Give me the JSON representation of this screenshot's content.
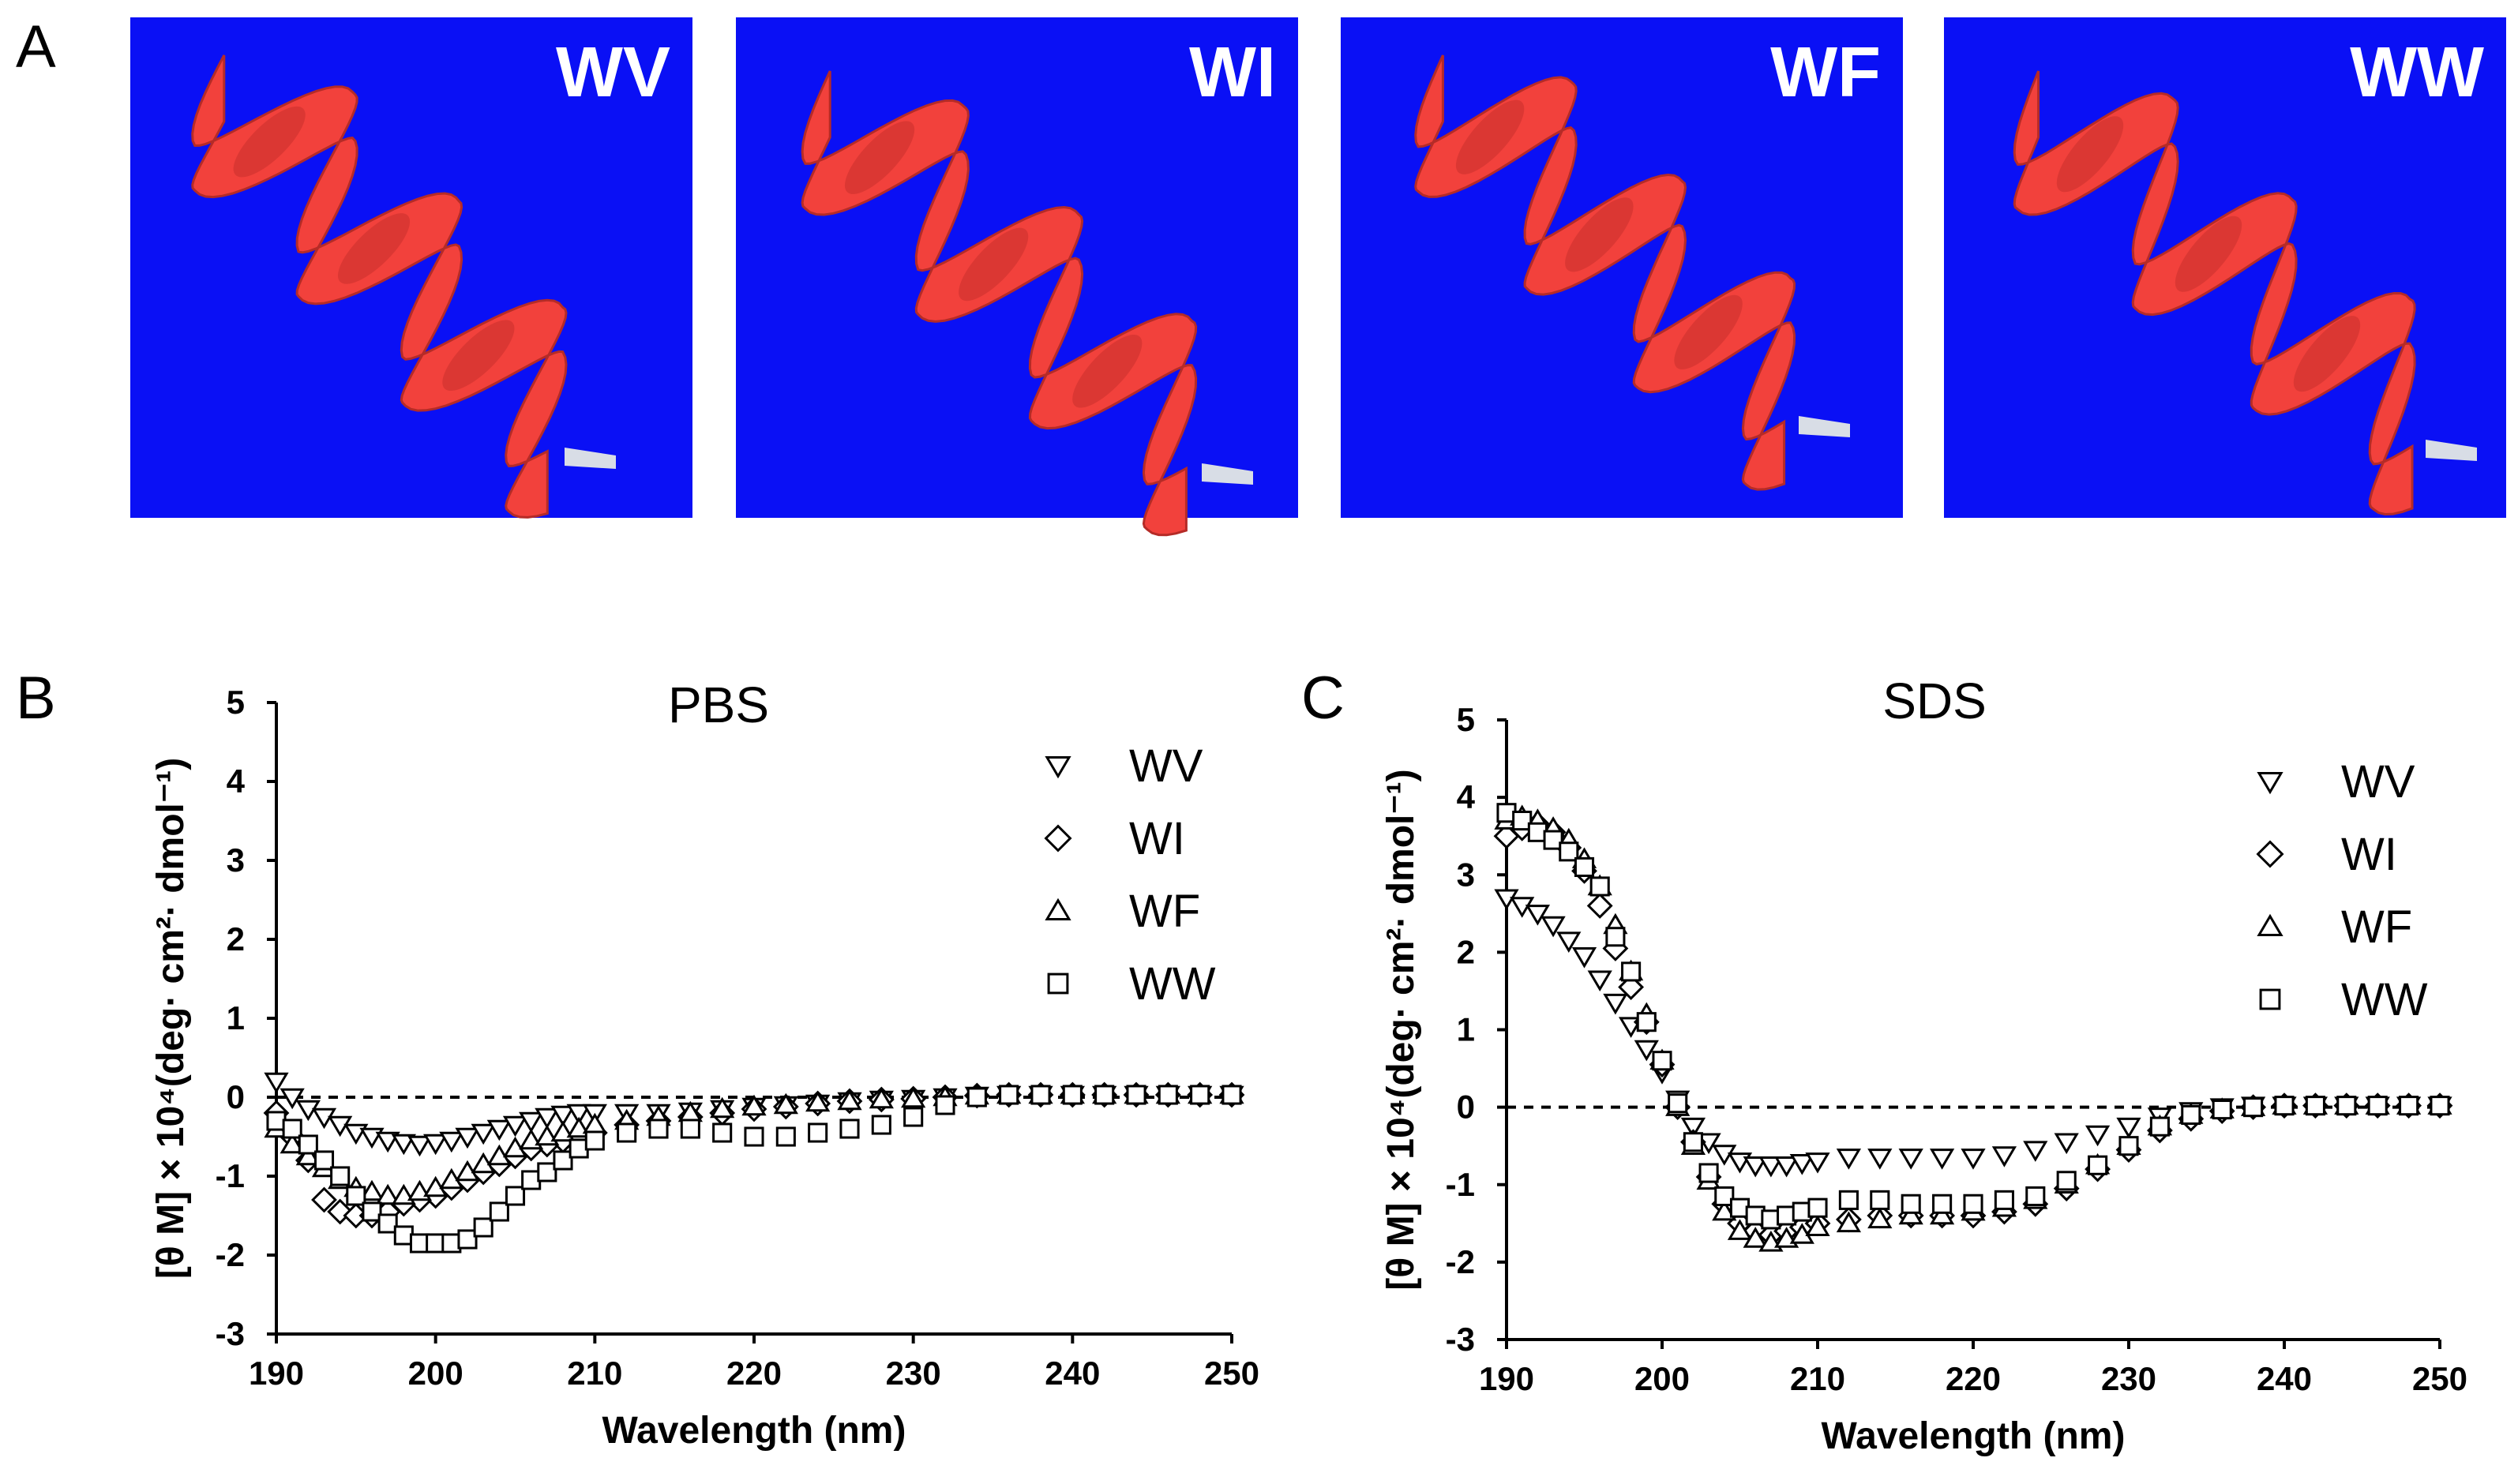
{
  "panel_labels": {
    "a": "A",
    "b": "B",
    "c": "C"
  },
  "structure_panels": [
    {
      "label": "WV",
      "background": "#0a10f5",
      "helix_color": "#f2413c"
    },
    {
      "label": "WI",
      "background": "#0a10f5",
      "helix_color": "#f2413c"
    },
    {
      "label": "WF",
      "background": "#0a10f5",
      "helix_color": "#f2413c"
    },
    {
      "label": "WW",
      "background": "#0a10f5",
      "helix_color": "#f2413c"
    }
  ],
  "chart_data": [
    {
      "type": "scatter",
      "title": "PBS",
      "xlabel": "Wavelength (nm)",
      "ylabel": "[θ M] × 10⁴(deg· cm²· dmol⁻¹)",
      "xlim": [
        190,
        250
      ],
      "ylim": [
        -3,
        5
      ],
      "xticks": [
        "190",
        "200",
        "210",
        "220",
        "230",
        "240",
        "250"
      ],
      "yticks": [
        "5",
        "4",
        "3",
        "2",
        "1",
        "0",
        "-1",
        "-2",
        "-3"
      ],
      "zero_line": "dashed",
      "legend_position": "top-right",
      "series": [
        {
          "name": "WV",
          "marker": "triangle-down",
          "x": [
            190,
            191,
            192,
            193,
            194,
            195,
            196,
            197,
            198,
            199,
            200,
            201,
            202,
            203,
            204,
            205,
            206,
            207,
            208,
            209,
            210,
            212,
            214,
            216,
            218,
            220,
            222,
            224,
            226,
            228,
            230,
            232,
            234,
            236,
            238,
            240,
            242,
            244,
            246,
            248,
            250
          ],
          "y": [
            0.2,
            0.0,
            -0.15,
            -0.25,
            -0.35,
            -0.45,
            -0.5,
            -0.55,
            -0.58,
            -0.6,
            -0.58,
            -0.55,
            -0.5,
            -0.45,
            -0.4,
            -0.35,
            -0.3,
            -0.25,
            -0.22,
            -0.2,
            -0.2,
            -0.2,
            -0.2,
            -0.18,
            -0.15,
            -0.12,
            -0.1,
            -0.08,
            -0.05,
            -0.03,
            -0.02,
            0.0,
            0.02,
            0.03,
            0.03,
            0.03,
            0.03,
            0.03,
            0.03,
            0.03,
            0.03
          ]
        },
        {
          "name": "WI",
          "marker": "diamond",
          "x": [
            190,
            191,
            192,
            193,
            194,
            195,
            196,
            197,
            198,
            199,
            200,
            201,
            202,
            203,
            204,
            205,
            206,
            207,
            208,
            209,
            210,
            212,
            214,
            216,
            218,
            220,
            222,
            224,
            226,
            228,
            230,
            232,
            234,
            236,
            238,
            240,
            242,
            244,
            246,
            248,
            250
          ],
          "y": [
            -0.2,
            -0.5,
            -0.8,
            -1.3,
            -1.45,
            -1.5,
            -1.5,
            -1.45,
            -1.35,
            -1.3,
            -1.25,
            -1.15,
            -1.05,
            -0.95,
            -0.85,
            -0.75,
            -0.65,
            -0.6,
            -0.55,
            -0.5,
            -0.45,
            -0.35,
            -0.3,
            -0.25,
            -0.2,
            -0.15,
            -0.12,
            -0.08,
            -0.05,
            -0.03,
            -0.02,
            0.0,
            0.02,
            0.03,
            0.03,
            0.03,
            0.03,
            0.03,
            0.03,
            0.03,
            0.03
          ]
        },
        {
          "name": "WF",
          "marker": "triangle-up",
          "x": [
            190,
            191,
            192,
            193,
            194,
            195,
            196,
            197,
            198,
            199,
            200,
            201,
            202,
            203,
            204,
            205,
            206,
            207,
            208,
            209,
            210,
            212,
            214,
            216,
            218,
            220,
            222,
            224,
            226,
            228,
            230,
            232,
            234,
            236,
            238,
            240,
            242,
            244,
            246,
            248,
            250
          ],
          "y": [
            -0.4,
            -0.6,
            -0.75,
            -0.9,
            -1.05,
            -1.15,
            -1.2,
            -1.25,
            -1.25,
            -1.2,
            -1.15,
            -1.05,
            -0.95,
            -0.85,
            -0.75,
            -0.65,
            -0.55,
            -0.5,
            -0.45,
            -0.4,
            -0.35,
            -0.3,
            -0.25,
            -0.2,
            -0.15,
            -0.12,
            -0.1,
            -0.07,
            -0.05,
            -0.03,
            -0.02,
            0.0,
            0.02,
            0.03,
            0.03,
            0.03,
            0.03,
            0.03,
            0.03,
            0.03,
            0.03
          ]
        },
        {
          "name": "WW",
          "marker": "square",
          "x": [
            190,
            191,
            192,
            193,
            194,
            195,
            196,
            197,
            198,
            199,
            200,
            201,
            202,
            203,
            204,
            205,
            206,
            207,
            208,
            209,
            210,
            212,
            214,
            216,
            218,
            220,
            222,
            224,
            226,
            228,
            230,
            232,
            234,
            236,
            238,
            240,
            242,
            244,
            246,
            248,
            250
          ],
          "y": [
            -0.3,
            -0.4,
            -0.6,
            -0.8,
            -1.0,
            -1.25,
            -1.45,
            -1.6,
            -1.75,
            -1.85,
            -1.85,
            -1.85,
            -1.8,
            -1.65,
            -1.45,
            -1.25,
            -1.05,
            -0.95,
            -0.8,
            -0.65,
            -0.55,
            -0.45,
            -0.4,
            -0.4,
            -0.45,
            -0.5,
            -0.5,
            -0.45,
            -0.4,
            -0.35,
            -0.25,
            -0.1,
            0.0,
            0.03,
            0.03,
            0.03,
            0.03,
            0.03,
            0.03,
            0.03,
            0.03
          ]
        }
      ]
    },
    {
      "type": "scatter",
      "title": "SDS",
      "xlabel": "Wavelength (nm)",
      "ylabel": "[θ M] × 10⁴(deg· cm²· dmol⁻¹)",
      "xlim": [
        190,
        250
      ],
      "ylim": [
        -3,
        5
      ],
      "xticks": [
        "190",
        "200",
        "210",
        "220",
        "230",
        "240",
        "250"
      ],
      "yticks": [
        "5",
        "4",
        "3",
        "2",
        "1",
        "0",
        "-1",
        "-2",
        "-3"
      ],
      "zero_line": "dashed",
      "legend_position": "top-right",
      "series": [
        {
          "name": "WV",
          "marker": "triangle-down",
          "x": [
            190,
            191,
            192,
            193,
            194,
            195,
            196,
            197,
            198,
            199,
            200,
            201,
            202,
            203,
            204,
            205,
            206,
            207,
            208,
            209,
            210,
            212,
            214,
            216,
            218,
            220,
            222,
            224,
            226,
            228,
            230,
            232,
            234,
            236,
            238,
            240,
            242,
            244,
            246,
            248,
            250
          ],
          "y": [
            2.7,
            2.6,
            2.5,
            2.35,
            2.15,
            1.95,
            1.65,
            1.35,
            1.05,
            0.75,
            0.45,
            0.1,
            -0.25,
            -0.45,
            -0.6,
            -0.7,
            -0.75,
            -0.75,
            -0.75,
            -0.72,
            -0.7,
            -0.65,
            -0.65,
            -0.65,
            -0.65,
            -0.65,
            -0.62,
            -0.55,
            -0.45,
            -0.35,
            -0.25,
            -0.12,
            -0.05,
            0.0,
            0.02,
            0.02,
            0.02,
            0.02,
            0.02,
            0.02,
            0.02
          ]
        },
        {
          "name": "WI",
          "marker": "diamond",
          "x": [
            190,
            191,
            192,
            193,
            194,
            195,
            196,
            197,
            198,
            199,
            200,
            201,
            202,
            203,
            204,
            205,
            206,
            207,
            208,
            209,
            210,
            212,
            214,
            216,
            218,
            220,
            222,
            224,
            226,
            228,
            230,
            232,
            234,
            236,
            238,
            240,
            242,
            244,
            246,
            248,
            250
          ],
          "y": [
            3.5,
            3.6,
            3.65,
            3.55,
            3.35,
            3.05,
            2.6,
            2.05,
            1.55,
            1.1,
            0.55,
            0.0,
            -0.45,
            -0.9,
            -1.25,
            -1.5,
            -1.6,
            -1.65,
            -1.6,
            -1.55,
            -1.5,
            -1.45,
            -1.4,
            -1.4,
            -1.4,
            -1.4,
            -1.35,
            -1.25,
            -1.05,
            -0.8,
            -0.55,
            -0.3,
            -0.15,
            -0.05,
            0.0,
            0.02,
            0.02,
            0.02,
            0.02,
            0.02,
            0.02
          ]
        },
        {
          "name": "WF",
          "marker": "triangle-up",
          "x": [
            190,
            191,
            192,
            193,
            194,
            195,
            196,
            197,
            198,
            199,
            200,
            201,
            202,
            203,
            204,
            205,
            206,
            207,
            208,
            209,
            210,
            212,
            214,
            216,
            218,
            220,
            222,
            224,
            226,
            228,
            230,
            232,
            234,
            236,
            238,
            240,
            242,
            244,
            246,
            248,
            250
          ],
          "y": [
            3.7,
            3.75,
            3.7,
            3.6,
            3.45,
            3.2,
            2.85,
            2.35,
            1.75,
            1.2,
            0.6,
            0.0,
            -0.5,
            -0.95,
            -1.35,
            -1.6,
            -1.7,
            -1.75,
            -1.7,
            -1.65,
            -1.55,
            -1.5,
            -1.45,
            -1.4,
            -1.4,
            -1.35,
            -1.3,
            -1.2,
            -1.0,
            -0.75,
            -0.5,
            -0.25,
            -0.1,
            -0.03,
            0.0,
            0.02,
            0.02,
            0.02,
            0.02,
            0.02,
            0.02
          ]
        },
        {
          "name": "WW",
          "marker": "square",
          "x": [
            190,
            191,
            192,
            193,
            194,
            195,
            196,
            197,
            198,
            199,
            200,
            201,
            202,
            203,
            204,
            205,
            206,
            207,
            208,
            209,
            210,
            212,
            214,
            216,
            218,
            220,
            222,
            224,
            226,
            228,
            230,
            232,
            234,
            236,
            238,
            240,
            242,
            244,
            246,
            248,
            250
          ],
          "y": [
            3.8,
            3.7,
            3.55,
            3.45,
            3.3,
            3.1,
            2.85,
            2.2,
            1.75,
            1.1,
            0.6,
            0.05,
            -0.45,
            -0.85,
            -1.15,
            -1.3,
            -1.4,
            -1.45,
            -1.4,
            -1.35,
            -1.3,
            -1.2,
            -1.2,
            -1.25,
            -1.25,
            -1.25,
            -1.2,
            -1.15,
            -0.95,
            -0.75,
            -0.5,
            -0.25,
            -0.1,
            -0.03,
            0.0,
            0.02,
            0.02,
            0.02,
            0.02,
            0.02,
            0.02
          ]
        }
      ]
    }
  ]
}
